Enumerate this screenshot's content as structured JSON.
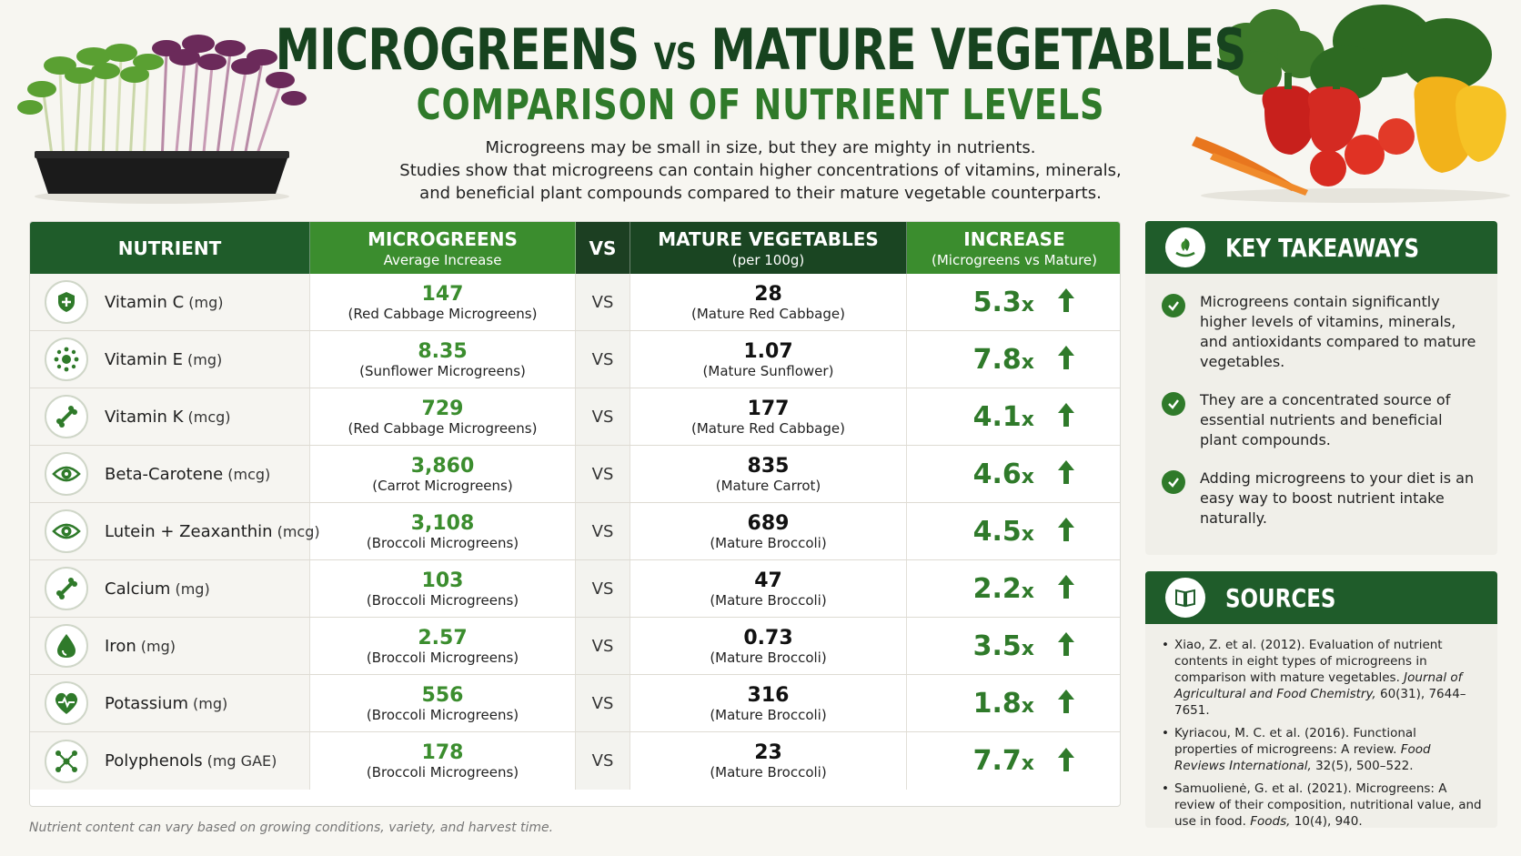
{
  "header": {
    "title_left": "MICROGREENS",
    "title_vs": "VS",
    "title_right": "MATURE VEGETABLES",
    "subtitle": "COMPARISON OF NUTRIENT LEVELS",
    "intro_line1": "Microgreens may be small in size, but they are mighty in nutrients.",
    "intro_line2": "Studies show that microgreens can contain higher concentrations of vitamins, minerals,",
    "intro_line3": "and beneficial plant compounds compared to their mature vegetable counterparts."
  },
  "table": {
    "columns": {
      "nutrient": "NUTRIENT",
      "microgreens": "MICROGREENS",
      "microgreens_sub": "Average Increase",
      "vs": "VS",
      "mature": "MATURE VEGETABLES",
      "mature_sub": "(per 100g)",
      "increase": "INCREASE",
      "increase_sub": "(Microgreens vs Mature)"
    },
    "vs_label": "VS",
    "x_suffix": "x",
    "rows": [
      {
        "icon": "shield-icon",
        "name": "Vitamin C",
        "unit": "(mg)",
        "micro_value": "147",
        "micro_source": "(Red Cabbage Microgreens)",
        "mature_value": "28",
        "mature_source": "(Mature Red Cabbage)",
        "increase": "5.3"
      },
      {
        "icon": "molecule-ring-icon",
        "name": "Vitamin E",
        "unit": "(mg)",
        "micro_value": "8.35",
        "micro_source": "(Sunflower Microgreens)",
        "mature_value": "1.07",
        "mature_source": "(Mature Sunflower)",
        "increase": "7.8"
      },
      {
        "icon": "bone-icon",
        "name": "Vitamin K",
        "unit": "(mcg)",
        "micro_value": "729",
        "micro_source": "(Red Cabbage Microgreens)",
        "mature_value": "177",
        "mature_source": "(Mature Red Cabbage)",
        "increase": "4.1"
      },
      {
        "icon": "eye-icon",
        "name": "Beta-Carotene",
        "unit": "(mcg)",
        "micro_value": "3,860",
        "micro_source": "(Carrot Microgreens)",
        "mature_value": "835",
        "mature_source": "(Mature Carrot)",
        "increase": "4.6"
      },
      {
        "icon": "eye-icon",
        "name": "Lutein + Zeaxanthin",
        "unit": "(mcg)",
        "micro_value": "3,108",
        "micro_source": "(Broccoli Microgreens)",
        "mature_value": "689",
        "mature_source": "(Mature Broccoli)",
        "increase": "4.5"
      },
      {
        "icon": "bone-icon",
        "name": "Calcium",
        "unit": "(mg)",
        "micro_value": "103",
        "micro_source": "(Broccoli Microgreens)",
        "mature_value": "47",
        "mature_source": "(Mature Broccoli)",
        "increase": "2.2"
      },
      {
        "icon": "drop-icon",
        "name": "Iron",
        "unit": "(mg)",
        "micro_value": "2.57",
        "micro_source": "(Broccoli Microgreens)",
        "mature_value": "0.73",
        "mature_source": "(Mature Broccoli)",
        "increase": "3.5"
      },
      {
        "icon": "heart-pulse-icon",
        "name": "Potassium",
        "unit": "(mg)",
        "micro_value": "556",
        "micro_source": "(Broccoli Microgreens)",
        "mature_value": "316",
        "mature_source": "(Mature Broccoli)",
        "increase": "1.8"
      },
      {
        "icon": "network-icon",
        "name": "Polyphenols",
        "unit": "(mg GAE)",
        "micro_value": "178",
        "micro_source": "(Broccoli Microgreens)",
        "mature_value": "23",
        "mature_source": "(Mature Broccoli)",
        "increase": "7.7"
      }
    ]
  },
  "footnote": "Nutrient content can vary based on growing conditions, variety, and harvest time.",
  "key_takeaways": {
    "title": "KEY TAKEAWAYS",
    "items": [
      "Microgreens contain significantly higher levels of vitamins, minerals, and antioxidants compared to mature vegetables.",
      "They are a concentrated source of essential nutrients and beneficial plant compounds.",
      "Adding microgreens to your diet is an easy way to boost nutrient intake naturally."
    ]
  },
  "sources": {
    "title": "SOURCES",
    "items": [
      {
        "text": "Xiao, Z. et al. (2012). Evaluation of nutrient contents in eight types of microgreens in comparison with mature vegetables. ",
        "journal": "Journal of Agricultural and Food Chemistry,",
        "tail": " 60(31), 7644–7651."
      },
      {
        "text": "Kyriacou, M. C. et al. (2016). Functional properties of microgreens: A review. ",
        "journal": "Food Reviews International,",
        "tail": " 32(5), 500–522."
      },
      {
        "text": "Samuolienė, G. et al. (2021). Microgreens: A review of their composition, nutritional value, and use in food. ",
        "journal": "Foods,",
        "tail": " 10(4), 940."
      }
    ]
  },
  "colors": {
    "dark_green": "#1f5c2a",
    "accent_green": "#3b8d2e",
    "title_green": "#17431f"
  }
}
